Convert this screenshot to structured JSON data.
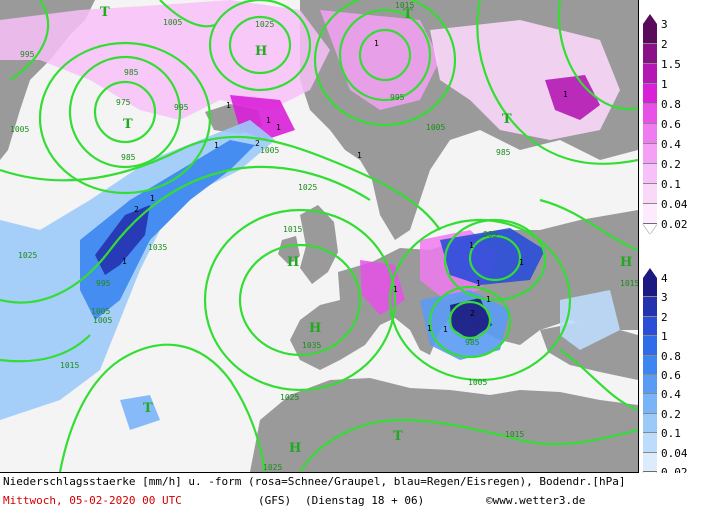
{
  "map": {
    "isobar_labels": [
      "1005",
      "1025",
      "1015",
      "1015",
      "995",
      "975",
      "985",
      "995",
      "1005",
      "1025",
      "985",
      "995",
      "1005",
      "1005",
      "985",
      "1025",
      "1015",
      "1035",
      "995",
      "1005",
      "1005",
      "1015",
      "1035",
      "995",
      "1005",
      "1025",
      "1025",
      "1015",
      "985"
    ],
    "high_marker": "H",
    "low_marker": "T",
    "precip_labels": [
      "1",
      "2",
      "1",
      "1",
      "1",
      "1",
      "2",
      "1",
      "1",
      "1",
      "1",
      "1",
      "1",
      "1",
      "2",
      "1",
      "1",
      "1",
      "1"
    ],
    "land_color": "#9a9a9a",
    "sea_color": "#f4f4f4",
    "isobar_color": "#33dd33",
    "snow_color": "#f0a8f0",
    "rain_color": "#2f74e0"
  },
  "legend_snow": {
    "label": "Schnee/Graupel",
    "ticks": [
      "3",
      "2",
      "1.5",
      "1",
      "0.8",
      "0.6",
      "0.4",
      "0.2",
      "0.1",
      "0.04",
      "0.02"
    ],
    "colors": [
      "#5a0a5a",
      "#8a108a",
      "#b418b4",
      "#d820d8",
      "#e850e8",
      "#f07af0",
      "#f4a0f4",
      "#f8c0f8",
      "#fad8fa",
      "#fdeafd"
    ]
  },
  "legend_rain": {
    "label": "Regen/Eisregen",
    "ticks": [
      "4",
      "3",
      "2",
      "1",
      "0.8",
      "0.6",
      "0.4",
      "0.2",
      "0.1",
      "0.04",
      "0.02"
    ],
    "colors": [
      "#1a1a80",
      "#2432b0",
      "#2a4ed8",
      "#2f6ce8",
      "#3c86f0",
      "#5a9cf4",
      "#7ab4f8",
      "#9ccaf8",
      "#bcdcfb",
      "#dcecfd"
    ]
  },
  "footer": {
    "description": "Niederschlagsstaerke [mm/h] u. -form (rosa=Schnee/Graupel, blau=Regen/Eisregen), Bodendr.[hPa]",
    "date": "Mittwoch, 05-02-2020  00 UTC",
    "model": "(GFS)",
    "run": "(Dienstag 18 + 06)",
    "copyright": "©www.wetter3.de"
  }
}
